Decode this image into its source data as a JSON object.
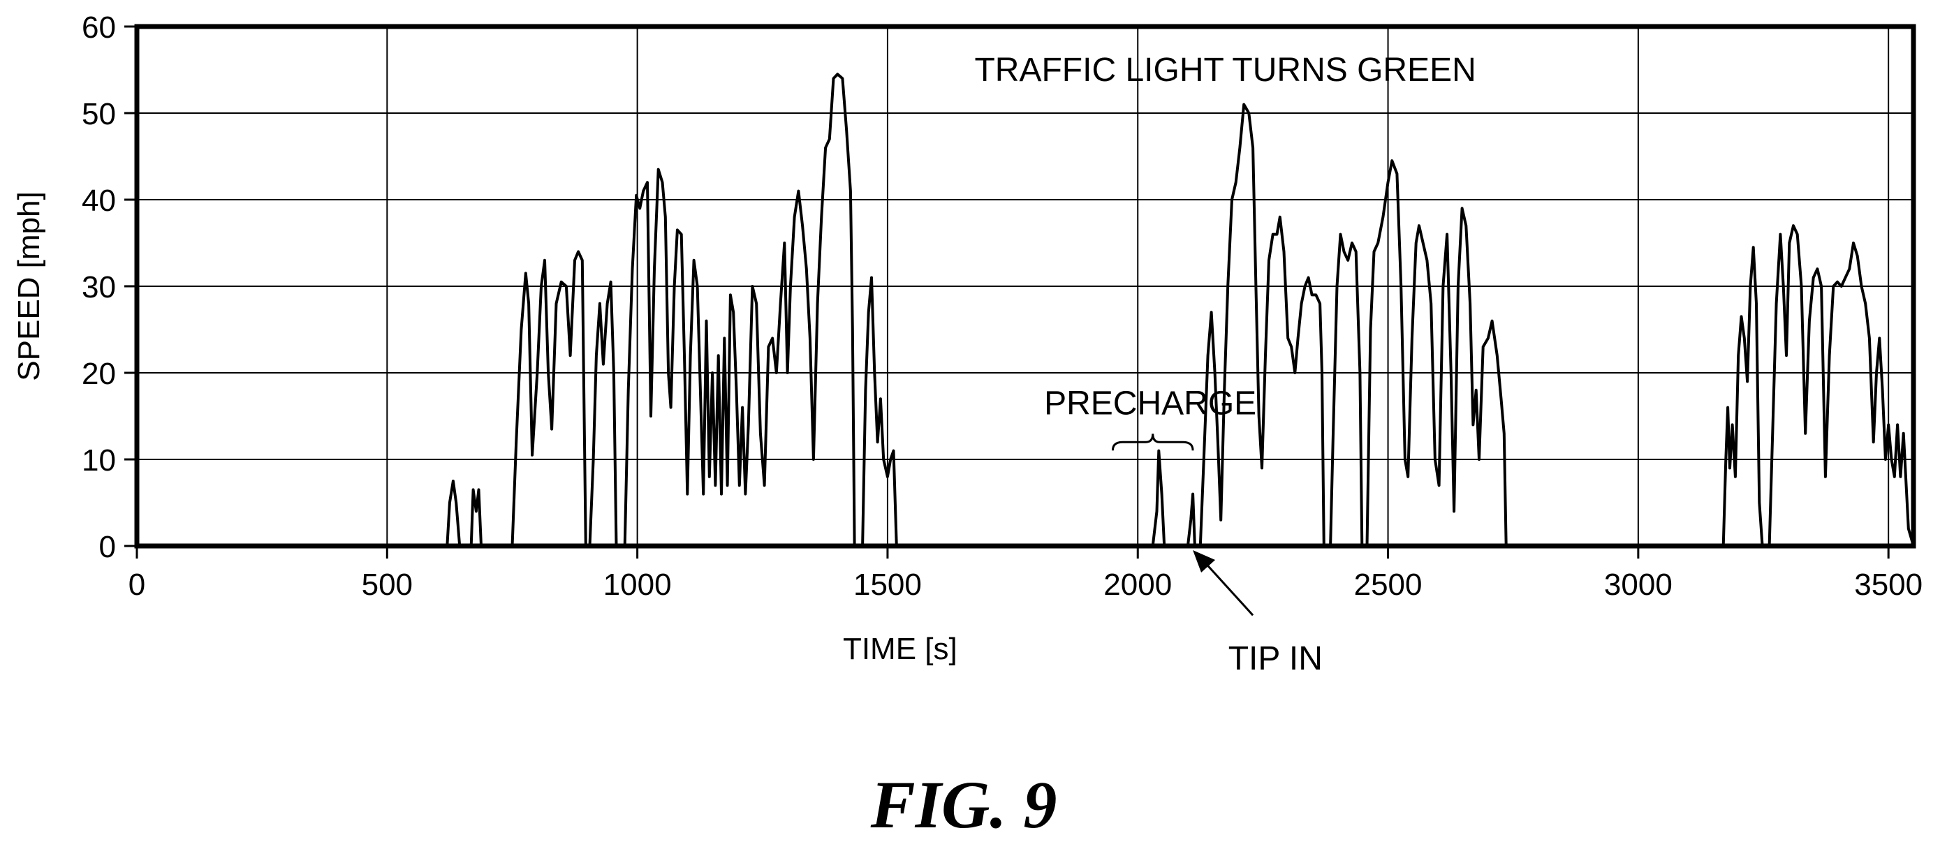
{
  "chart_data": {
    "type": "line",
    "xlabel": "TIME [s]",
    "ylabel": "SPEED [mph]",
    "xlim": [
      0,
      3550
    ],
    "ylim": [
      0,
      60
    ],
    "x_ticks": [
      0,
      500,
      1000,
      1500,
      2000,
      2500,
      3000,
      3500
    ],
    "y_ticks": [
      0,
      10,
      20,
      30,
      40,
      50,
      60
    ],
    "grid": true,
    "legend": "none",
    "line_color": "#000000",
    "series": [
      {
        "points": [
          [
            0,
            0
          ],
          [
            620,
            0
          ],
          [
            625,
            5
          ],
          [
            632,
            7.5
          ],
          [
            638,
            5
          ],
          [
            645,
            0
          ],
          [
            668,
            0
          ],
          [
            672,
            6.5
          ],
          [
            678,
            4
          ],
          [
            683,
            6.5
          ],
          [
            688,
            0
          ],
          [
            750,
            0
          ],
          [
            758,
            12
          ],
          [
            768,
            25
          ],
          [
            777,
            31.5
          ],
          [
            783,
            28
          ],
          [
            790,
            10.5
          ],
          [
            800,
            20
          ],
          [
            808,
            30
          ],
          [
            815,
            33
          ],
          [
            822,
            20
          ],
          [
            829,
            13.5
          ],
          [
            838,
            28
          ],
          [
            848,
            30.5
          ],
          [
            858,
            30
          ],
          [
            866,
            22
          ],
          [
            875,
            33
          ],
          [
            882,
            34
          ],
          [
            890,
            33
          ],
          [
            897,
            0
          ],
          [
            905,
            0
          ],
          [
            912,
            10
          ],
          [
            918,
            22
          ],
          [
            925,
            28
          ],
          [
            932,
            21
          ],
          [
            940,
            28
          ],
          [
            947,
            30.5
          ],
          [
            953,
            20
          ],
          [
            958,
            0
          ],
          [
            975,
            0
          ],
          [
            982,
            18
          ],
          [
            990,
            32
          ],
          [
            998,
            40.5
          ],
          [
            1005,
            39
          ],
          [
            1012,
            41
          ],
          [
            1020,
            42
          ],
          [
            1027,
            15
          ],
          [
            1034,
            32
          ],
          [
            1042,
            43.5
          ],
          [
            1050,
            42
          ],
          [
            1056,
            38
          ],
          [
            1062,
            20
          ],
          [
            1067,
            16
          ],
          [
            1074,
            30
          ],
          [
            1080,
            36.5
          ],
          [
            1088,
            36
          ],
          [
            1094,
            22
          ],
          [
            1100,
            6
          ],
          [
            1106,
            22
          ],
          [
            1113,
            33
          ],
          [
            1120,
            30
          ],
          [
            1126,
            18
          ],
          [
            1132,
            6
          ],
          [
            1138,
            26
          ],
          [
            1144,
            8
          ],
          [
            1150,
            20
          ],
          [
            1156,
            7
          ],
          [
            1162,
            22
          ],
          [
            1168,
            6
          ],
          [
            1174,
            24
          ],
          [
            1180,
            7
          ],
          [
            1186,
            29
          ],
          [
            1192,
            27
          ],
          [
            1198,
            18
          ],
          [
            1204,
            7
          ],
          [
            1210,
            16
          ],
          [
            1216,
            6
          ],
          [
            1222,
            14
          ],
          [
            1230,
            30
          ],
          [
            1238,
            28
          ],
          [
            1246,
            13
          ],
          [
            1254,
            7
          ],
          [
            1262,
            23
          ],
          [
            1270,
            24
          ],
          [
            1278,
            20
          ],
          [
            1286,
            28
          ],
          [
            1294,
            35
          ],
          [
            1300,
            20
          ],
          [
            1306,
            30
          ],
          [
            1314,
            38
          ],
          [
            1322,
            41
          ],
          [
            1330,
            37
          ],
          [
            1338,
            32
          ],
          [
            1345,
            24
          ],
          [
            1352,
            10
          ],
          [
            1360,
            28
          ],
          [
            1368,
            38
          ],
          [
            1376,
            46
          ],
          [
            1384,
            47
          ],
          [
            1392,
            54
          ],
          [
            1400,
            54.5
          ],
          [
            1410,
            54
          ],
          [
            1418,
            48
          ],
          [
            1426,
            41
          ],
          [
            1430,
            25
          ],
          [
            1434,
            0
          ],
          [
            1450,
            0
          ],
          [
            1456,
            18
          ],
          [
            1462,
            27
          ],
          [
            1468,
            31
          ],
          [
            1474,
            20
          ],
          [
            1480,
            12
          ],
          [
            1486,
            17
          ],
          [
            1492,
            10
          ],
          [
            1500,
            8
          ],
          [
            1506,
            10
          ],
          [
            1512,
            11
          ],
          [
            1518,
            0
          ],
          [
            1950,
            0
          ],
          [
            2030,
            0
          ],
          [
            2038,
            4
          ],
          [
            2042,
            11
          ],
          [
            2048,
            6
          ],
          [
            2053,
            0
          ],
          [
            2100,
            0
          ],
          [
            2106,
            3
          ],
          [
            2110,
            6
          ],
          [
            2114,
            0
          ],
          [
            2125,
            0
          ],
          [
            2132,
            10
          ],
          [
            2140,
            22
          ],
          [
            2147,
            27
          ],
          [
            2154,
            20
          ],
          [
            2160,
            12
          ],
          [
            2166,
            3
          ],
          [
            2173,
            18
          ],
          [
            2180,
            30
          ],
          [
            2188,
            40
          ],
          [
            2196,
            42
          ],
          [
            2204,
            46
          ],
          [
            2212,
            51
          ],
          [
            2222,
            50
          ],
          [
            2230,
            46
          ],
          [
            2236,
            30
          ],
          [
            2242,
            15
          ],
          [
            2248,
            9
          ],
          [
            2255,
            22
          ],
          [
            2262,
            33
          ],
          [
            2270,
            36
          ],
          [
            2278,
            36
          ],
          [
            2284,
            38
          ],
          [
            2292,
            34
          ],
          [
            2300,
            24
          ],
          [
            2307,
            23
          ],
          [
            2314,
            20
          ],
          [
            2320,
            24
          ],
          [
            2327,
            28
          ],
          [
            2334,
            30
          ],
          [
            2341,
            31
          ],
          [
            2348,
            29
          ],
          [
            2356,
            29
          ],
          [
            2364,
            28
          ],
          [
            2368,
            20
          ],
          [
            2372,
            0
          ],
          [
            2385,
            0
          ],
          [
            2390,
            12
          ],
          [
            2398,
            30
          ],
          [
            2405,
            36
          ],
          [
            2412,
            34
          ],
          [
            2420,
            33
          ],
          [
            2428,
            35
          ],
          [
            2436,
            34
          ],
          [
            2444,
            20
          ],
          [
            2448,
            0
          ],
          [
            2458,
            0
          ],
          [
            2465,
            25
          ],
          [
            2472,
            34
          ],
          [
            2480,
            35
          ],
          [
            2490,
            38
          ],
          [
            2500,
            42
          ],
          [
            2508,
            44.5
          ],
          [
            2518,
            43
          ],
          [
            2526,
            30
          ],
          [
            2534,
            10
          ],
          [
            2540,
            8
          ],
          [
            2548,
            24
          ],
          [
            2556,
            35
          ],
          [
            2562,
            37
          ],
          [
            2570,
            35
          ],
          [
            2578,
            33
          ],
          [
            2586,
            28
          ],
          [
            2594,
            10
          ],
          [
            2602,
            7
          ],
          [
            2610,
            30
          ],
          [
            2618,
            36
          ],
          [
            2626,
            20
          ],
          [
            2632,
            4
          ],
          [
            2640,
            30
          ],
          [
            2648,
            39
          ],
          [
            2656,
            37
          ],
          [
            2664,
            28
          ],
          [
            2670,
            14
          ],
          [
            2676,
            18
          ],
          [
            2682,
            10
          ],
          [
            2690,
            23
          ],
          [
            2700,
            24
          ],
          [
            2708,
            26
          ],
          [
            2718,
            22
          ],
          [
            2726,
            17
          ],
          [
            2732,
            13
          ],
          [
            2736,
            0
          ],
          [
            3170,
            0
          ],
          [
            3175,
            10
          ],
          [
            3179,
            16
          ],
          [
            3183,
            9
          ],
          [
            3188,
            14
          ],
          [
            3194,
            8
          ],
          [
            3200,
            22
          ],
          [
            3206,
            26.5
          ],
          [
            3212,
            24
          ],
          [
            3218,
            19
          ],
          [
            3224,
            30
          ],
          [
            3230,
            34.5
          ],
          [
            3236,
            28
          ],
          [
            3242,
            5
          ],
          [
            3248,
            0
          ],
          [
            3262,
            0
          ],
          [
            3268,
            12
          ],
          [
            3276,
            28
          ],
          [
            3284,
            36
          ],
          [
            3290,
            30
          ],
          [
            3296,
            22
          ],
          [
            3302,
            35
          ],
          [
            3310,
            37
          ],
          [
            3318,
            36
          ],
          [
            3326,
            30
          ],
          [
            3334,
            13
          ],
          [
            3342,
            26
          ],
          [
            3350,
            31
          ],
          [
            3358,
            32
          ],
          [
            3366,
            30
          ],
          [
            3374,
            8
          ],
          [
            3382,
            22
          ],
          [
            3390,
            30
          ],
          [
            3398,
            30.5
          ],
          [
            3406,
            30
          ],
          [
            3414,
            31
          ],
          [
            3422,
            32
          ],
          [
            3430,
            35
          ],
          [
            3438,
            33.5
          ],
          [
            3446,
            30
          ],
          [
            3454,
            28
          ],
          [
            3462,
            24
          ],
          [
            3470,
            12
          ],
          [
            3476,
            20
          ],
          [
            3482,
            24
          ],
          [
            3488,
            18
          ],
          [
            3494,
            10
          ],
          [
            3500,
            14
          ],
          [
            3506,
            10
          ],
          [
            3512,
            8
          ],
          [
            3518,
            14
          ],
          [
            3524,
            8
          ],
          [
            3530,
            13
          ],
          [
            3540,
            2
          ],
          [
            3550,
            0
          ]
        ]
      }
    ],
    "annotations": [
      {
        "text": "TRAFFIC LIGHT TURNS GREEN",
        "x": 2175,
        "y": 55
      },
      {
        "text": "PRECHARGE",
        "x": 2025,
        "y": 16.5
      },
      {
        "text": "TIP IN",
        "x": 2275,
        "y": -13
      }
    ],
    "precharge_span": [
      1950,
      2110
    ],
    "tip_in_target": [
      2110,
      0
    ],
    "caption": "FIG. 9"
  }
}
